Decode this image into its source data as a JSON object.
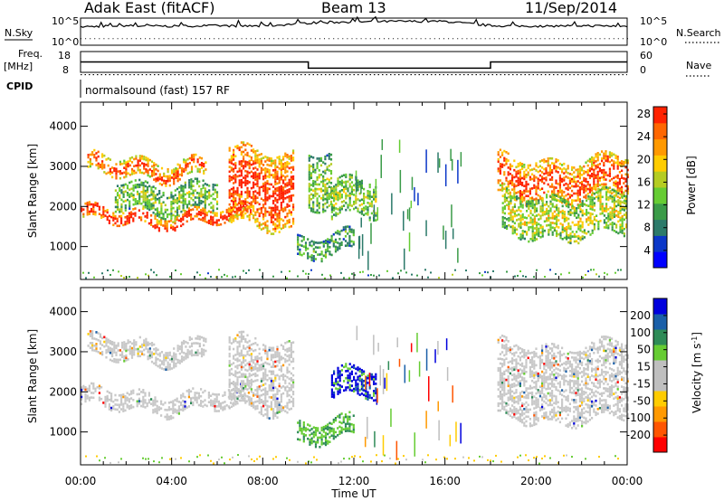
{
  "header": {
    "station": "Adak East (fitACF)",
    "beam": "Beam 13",
    "date": "11/Sep/2014"
  },
  "panels": {
    "nsky_label": "N.Sky",
    "nsky_ticks": [
      "10^5",
      "10^0"
    ],
    "nsearch_label": "N.Search",
    "freq_label": "Freq.",
    "freq_unit": "[MHz]",
    "freq_ticks": [
      "18",
      "8"
    ],
    "nave_label": "Nave",
    "nave_ticks": [
      "60",
      "0"
    ],
    "cpid_label": "CPID",
    "cpid_value": "normalsound (fast) 157 RF"
  },
  "colors": {
    "power": [
      "#0000ff",
      "#0b37c8",
      "#2c7a6a",
      "#3a9b48",
      "#66cc33",
      "#b5cc22",
      "#ffcc00",
      "#ff9900",
      "#ff6600",
      "#ff2200"
    ],
    "velocity": [
      "#0000dd",
      "#1a5fa8",
      "#2e8b57",
      "#66cc33",
      "#bfbfbf",
      "#bfbfbf",
      "#ffcc00",
      "#ff9900",
      "#ff5500",
      "#ff0000"
    ],
    "velocity_ground": "#c8c8c8"
  },
  "chart_data": [
    {
      "type": "line",
      "name": "N.Sky / N.Search",
      "x": [
        "00:00",
        "02:00",
        "04:00",
        "06:00",
        "08:00",
        "10:00",
        "12:00",
        "14:00",
        "16:00",
        "18:00",
        "20:00",
        "22:00",
        "00:00"
      ],
      "values_log10": [
        3.4,
        3.6,
        3.5,
        3.6,
        3.5,
        4.1,
        4.3,
        4.4,
        4.4,
        3.6,
        3.5,
        3.6,
        3.5
      ],
      "ylim": [
        "10^0",
        "10^5"
      ]
    },
    {
      "type": "line",
      "name": "Freq. / Nave",
      "segments": [
        {
          "start": "00:00",
          "end": "10:00",
          "freq_mhz": 13
        },
        {
          "start": "10:00",
          "end": "18:00",
          "freq_mhz": 10
        },
        {
          "start": "18:00",
          "end": "24:00",
          "freq_mhz": 13
        }
      ],
      "nave": 22,
      "freq_ylim": [
        8,
        18
      ],
      "nave_ylim": [
        0,
        60
      ]
    },
    {
      "type": "heatmap",
      "title": "Power",
      "xlabel": "",
      "ylabel": "Slant Range [km]",
      "x_ticks": [
        "00:00",
        "04:00",
        "08:00",
        "12:00",
        "16:00",
        "20:00",
        "00:00"
      ],
      "y_ticks": [
        1000,
        2000,
        3000,
        4000
      ],
      "ylim_km": [
        180,
        4600
      ],
      "colorbar_label": "Power [dB]",
      "colorbar_ticks": [
        4,
        8,
        12,
        16,
        20,
        24,
        28
      ],
      "bands": [
        {
          "t0": 0.0,
          "t1": 7.5,
          "r0": 1550,
          "r1": 1900,
          "intensity": 0.85
        },
        {
          "t0": 0.3,
          "t1": 5.5,
          "r0": 2750,
          "r1": 3200,
          "intensity": 0.7
        },
        {
          "t0": 1.5,
          "t1": 6.0,
          "r0": 1950,
          "r1": 2600,
          "intensity": 0.3
        },
        {
          "t0": 6.5,
          "t1": 9.3,
          "r0": 1500,
          "r1": 3400,
          "intensity": 0.8
        },
        {
          "t0": 10.0,
          "t1": 11.0,
          "r0": 2000,
          "r1": 3400,
          "intensity": 0.3
        },
        {
          "t0": 11.0,
          "t1": 13.0,
          "r0": 1700,
          "r1": 2600,
          "intensity": 0.3
        },
        {
          "t0": 9.5,
          "t1": 12.0,
          "r0": 800,
          "r1": 1300,
          "intensity": 0.2
        },
        {
          "t0": 18.3,
          "t1": 24.0,
          "r0": 2200,
          "r1": 3200,
          "intensity": 0.75
        },
        {
          "t0": 18.5,
          "t1": 24.0,
          "r0": 1300,
          "r1": 2300,
          "intensity": 0.4
        }
      ]
    },
    {
      "type": "heatmap",
      "title": "Velocity",
      "xlabel": "Time UT",
      "ylabel": "Slant Range [km]",
      "x_ticks": [
        "00:00",
        "04:00",
        "08:00",
        "12:00",
        "16:00",
        "20:00",
        "00:00"
      ],
      "y_ticks": [
        1000,
        2000,
        3000,
        4000
      ],
      "ylim_km": [
        180,
        4600
      ],
      "colorbar_label": "Velocity [m s^-1]",
      "colorbar_ticks": [
        200,
        100,
        50,
        15,
        -15,
        -50,
        -100,
        -200
      ],
      "bands": [
        {
          "t0": 0.0,
          "t1": 7.5,
          "r0": 1550,
          "r1": 2000,
          "kind": "ground"
        },
        {
          "t0": 0.3,
          "t1": 5.5,
          "r0": 2800,
          "r1": 3300,
          "kind": "ground"
        },
        {
          "t0": 6.5,
          "t1": 9.3,
          "r0": 1500,
          "r1": 3300,
          "kind": "ground"
        },
        {
          "t0": 11.0,
          "t1": 13.0,
          "r0": 1800,
          "r1": 2500,
          "kind": "positive"
        },
        {
          "t0": 9.5,
          "t1": 12.0,
          "r0": 800,
          "r1": 1300,
          "kind": "weak"
        },
        {
          "t0": 18.3,
          "t1": 24.0,
          "r0": 1300,
          "r1": 3200,
          "kind": "ground"
        }
      ]
    }
  ],
  "axis": {
    "xlabel": "Time UT",
    "ylabel": "Slant Range [km]",
    "x_ticks": [
      "00:00",
      "04:00",
      "08:00",
      "12:00",
      "16:00",
      "20:00",
      "00:00"
    ],
    "power_label": "Power [dB]",
    "velocity_label": "Velocity [m s",
    "velocity_label_sup": "-1",
    "velocity_label_end": "]"
  }
}
